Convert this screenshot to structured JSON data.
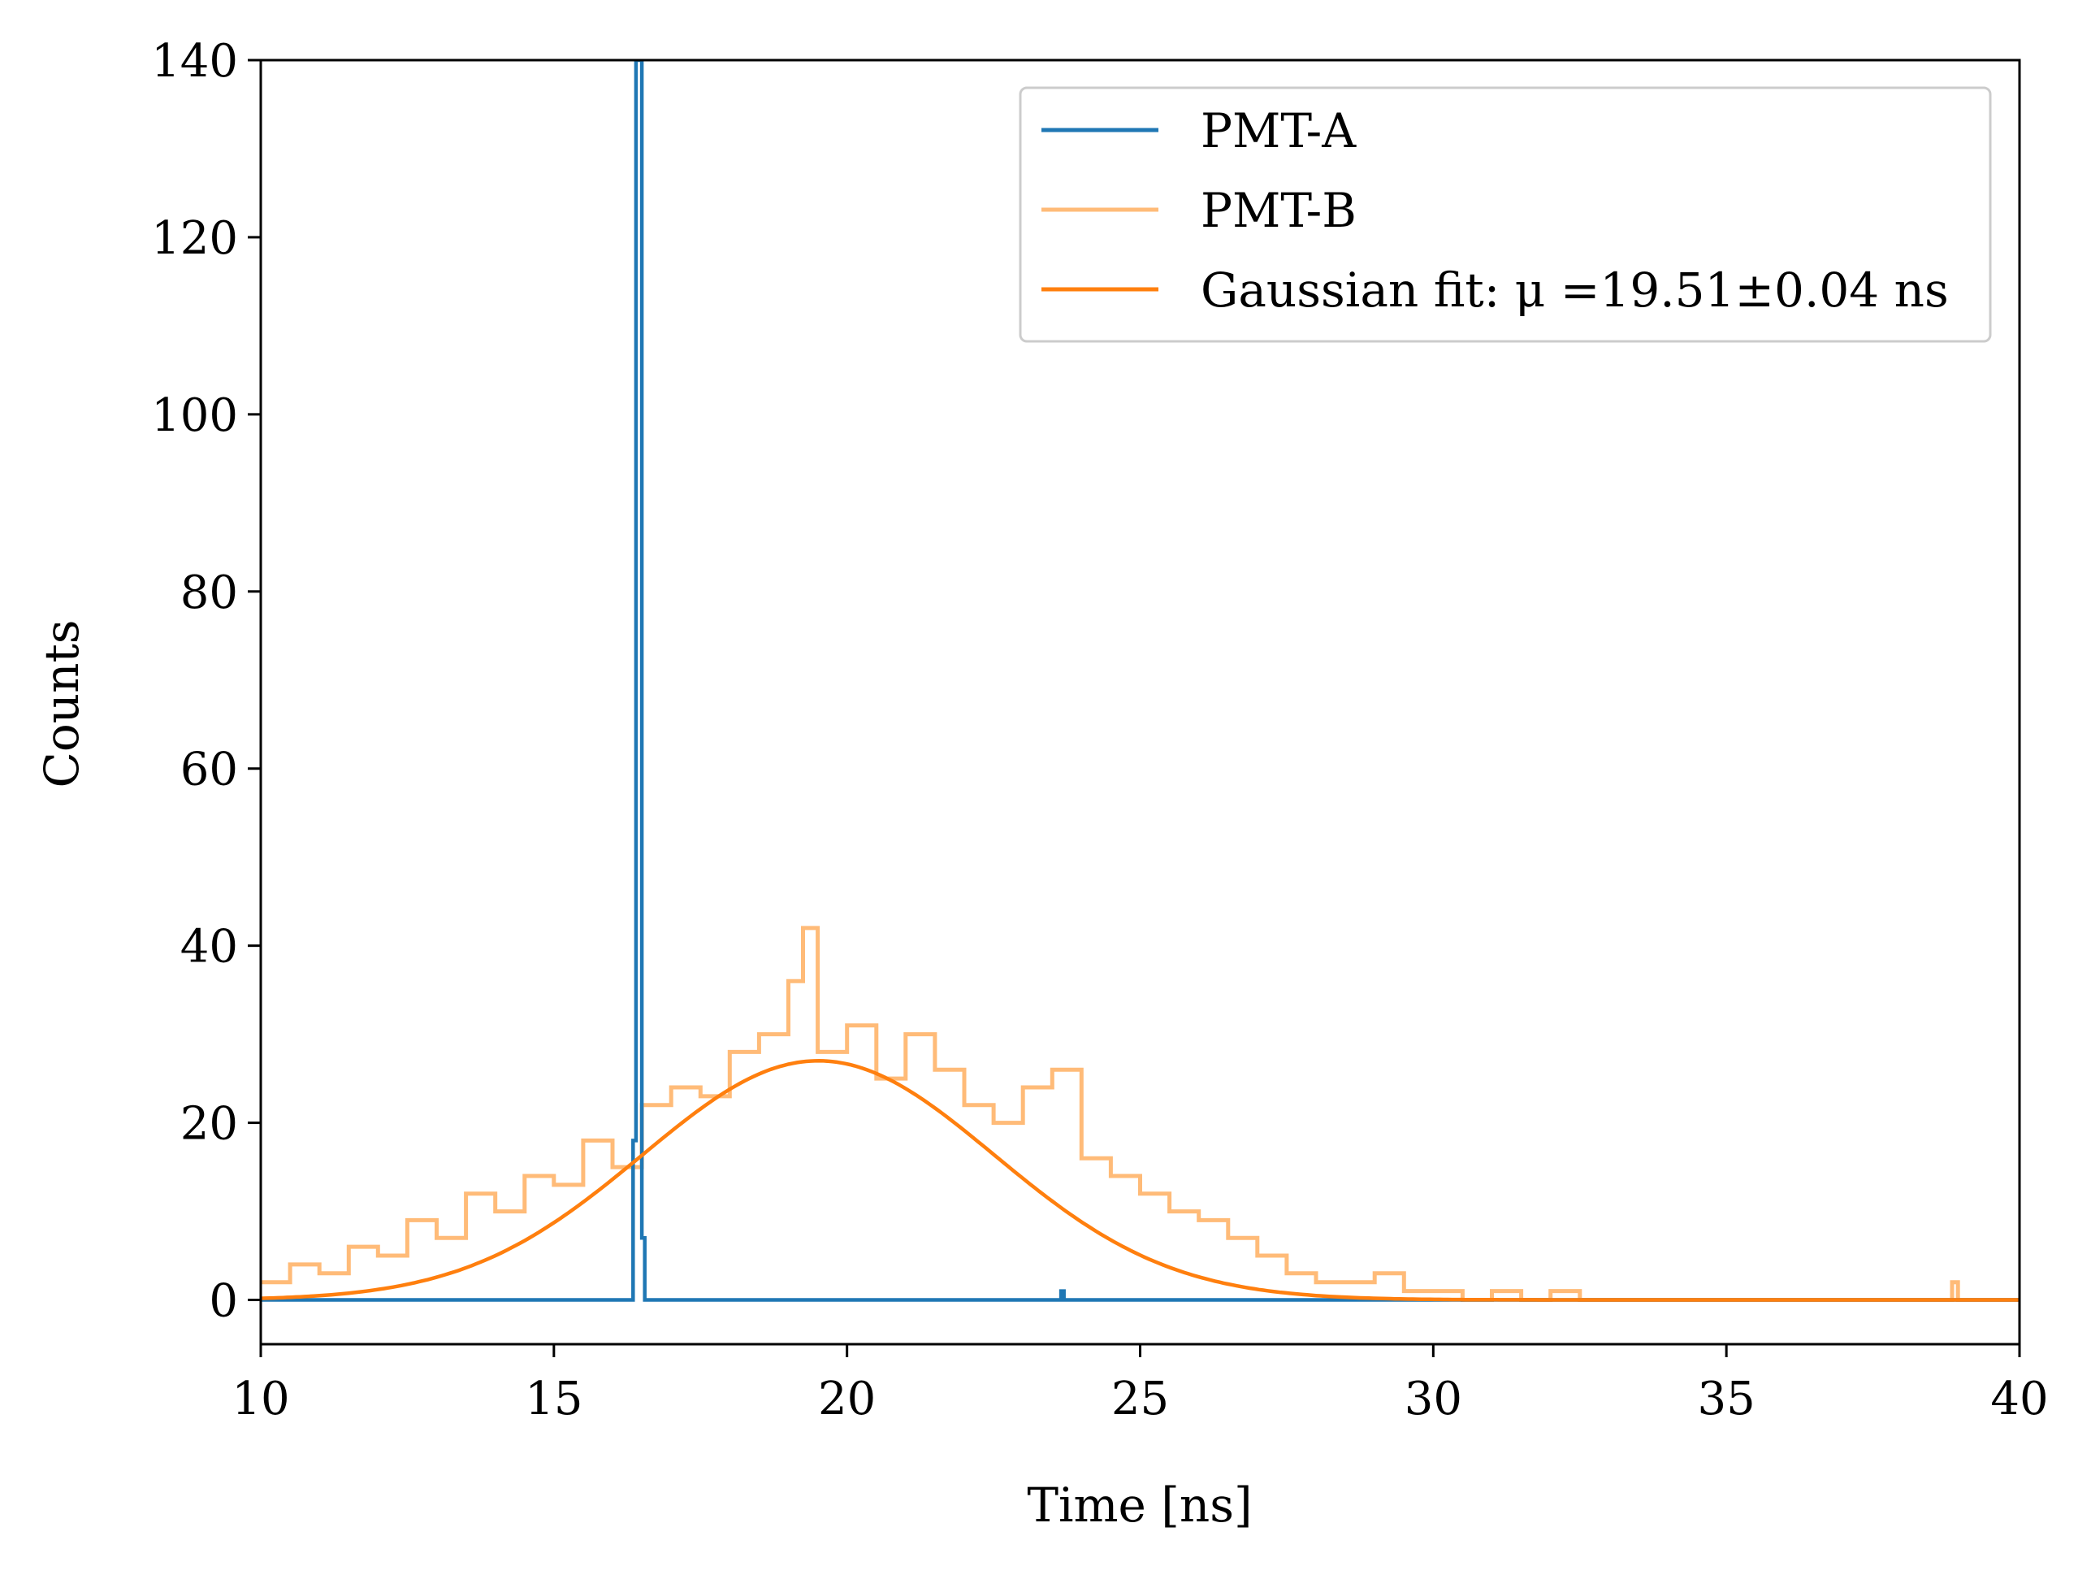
{
  "chart_data": {
    "type": "line",
    "title": "",
    "xlabel": "Time [ns]",
    "ylabel": "Counts",
    "xlim": [
      10,
      40
    ],
    "ylim": [
      -5,
      140
    ],
    "x_ticks": [
      10,
      15,
      20,
      25,
      30,
      35,
      40
    ],
    "y_ticks": [
      0,
      20,
      40,
      60,
      80,
      100,
      120,
      140
    ],
    "grid": false,
    "legend_position": "top-right",
    "series": [
      {
        "name": "PMT-A",
        "style": "step",
        "color": "#1f77b4",
        "x": [
          10.0,
          16.3,
          16.35,
          16.4,
          16.45,
          16.5,
          16.55,
          23.6,
          23.65,
          23.7,
          40.0
        ],
        "y": [
          0,
          0,
          18,
          140,
          140,
          7,
          0,
          0,
          1,
          0,
          0
        ]
      },
      {
        "name": "PMT-B",
        "style": "step",
        "color": "#ffbb78",
        "x": [
          10.0,
          10.5,
          11.0,
          11.5,
          12.0,
          12.5,
          13.0,
          13.5,
          14.0,
          14.5,
          15.0,
          15.5,
          16.0,
          16.5,
          17.0,
          17.5,
          18.0,
          18.5,
          19.0,
          19.25,
          19.5,
          20.0,
          20.5,
          21.0,
          21.5,
          22.0,
          22.5,
          23.0,
          23.5,
          24.0,
          24.5,
          25.0,
          25.5,
          26.0,
          26.5,
          27.0,
          27.5,
          28.0,
          28.5,
          29.0,
          29.5,
          30.0,
          30.5,
          31.0,
          31.5,
          32.0,
          32.5,
          33.0,
          38.85,
          38.9,
          38.95,
          40.0
        ],
        "y": [
          2,
          4,
          3,
          6,
          5,
          9,
          7,
          12,
          10,
          14,
          13,
          18,
          15,
          22,
          24,
          23,
          28,
          30,
          36,
          42,
          28,
          31,
          25,
          30,
          26,
          22,
          20,
          24,
          26,
          16,
          14,
          12,
          10,
          9,
          7,
          5,
          3,
          2,
          2,
          3,
          1,
          1,
          0,
          1,
          0,
          1,
          0,
          0,
          2,
          2,
          0,
          0
        ]
      },
      {
        "name": "Gaussian fit: μ =19.51±0.04 ns",
        "style": "gaussian",
        "color": "#ff7f0e",
        "amplitude": 27,
        "mu": 19.51,
        "sigma": 3.0
      }
    ]
  }
}
